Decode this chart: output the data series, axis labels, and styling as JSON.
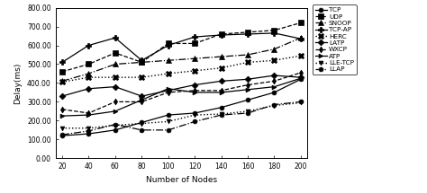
{
  "x": [
    20,
    40,
    60,
    80,
    100,
    120,
    140,
    160,
    180,
    200
  ],
  "series": {
    "TCP": [
      120,
      130,
      150,
      190,
      230,
      240,
      270,
      310,
      350,
      420
    ],
    "UDP": [
      460,
      500,
      560,
      510,
      610,
      610,
      660,
      670,
      680,
      720
    ],
    "SNOOP": [
      410,
      450,
      500,
      510,
      520,
      530,
      540,
      550,
      580,
      640
    ],
    "TCP-AP": [
      510,
      600,
      640,
      520,
      600,
      645,
      655,
      660,
      665,
      635
    ],
    "HERC": [
      405,
      430,
      430,
      430,
      450,
      465,
      480,
      510,
      520,
      545
    ],
    "LATP": [
      330,
      370,
      380,
      330,
      360,
      390,
      410,
      420,
      440,
      430
    ],
    "WXCP": [
      260,
      240,
      300,
      300,
      350,
      360,
      360,
      390,
      410,
      455
    ],
    "ATP": [
      225,
      230,
      250,
      310,
      370,
      350,
      350,
      365,
      380,
      425
    ],
    "LLE-TCP": [
      160,
      160,
      175,
      185,
      195,
      230,
      235,
      250,
      280,
      295
    ],
    "LLAP": [
      125,
      145,
      180,
      150,
      150,
      195,
      230,
      240,
      285,
      300
    ]
  },
  "styles": {
    "TCP": {
      "color": "black",
      "linestyle": "-",
      "marker": "o",
      "markersize": 3.5,
      "linewidth": 0.9,
      "mfc": "black"
    },
    "UDP": {
      "color": "black",
      "linestyle": "--",
      "marker": "s",
      "markersize": 4.0,
      "linewidth": 0.9,
      "mfc": "black"
    },
    "SNOOP": {
      "color": "black",
      "linestyle": "-.",
      "marker": "^",
      "markersize": 4.0,
      "linewidth": 0.9,
      "mfc": "black"
    },
    "TCP-AP": {
      "color": "black",
      "linestyle": "-",
      "marker": "P",
      "markersize": 4.5,
      "linewidth": 0.9,
      "mfc": "black"
    },
    "HERC": {
      "color": "black",
      "linestyle": ":",
      "marker": "X",
      "markersize": 4.5,
      "linewidth": 1.0,
      "mfc": "black"
    },
    "LATP": {
      "color": "black",
      "linestyle": "-",
      "marker": "D",
      "markersize": 3.5,
      "linewidth": 0.9,
      "mfc": "black"
    },
    "WXCP": {
      "color": "black",
      "linestyle": "--",
      "marker": "d",
      "markersize": 3.5,
      "linewidth": 0.9,
      "mfc": "black"
    },
    "ATP": {
      "color": "black",
      "linestyle": "-",
      "marker": ">",
      "markersize": 3.5,
      "linewidth": 0.9,
      "mfc": "black"
    },
    "LLE-TCP": {
      "color": "black",
      "linestyle": ":",
      "marker": "v",
      "markersize": 3.5,
      "linewidth": 1.0,
      "mfc": "black"
    },
    "LLAP": {
      "color": "black",
      "linestyle": "-.",
      "marker": "o",
      "markersize": 3.5,
      "linewidth": 0.9,
      "mfc": "black"
    }
  },
  "xlabel": "Number of Nodes",
  "ylabel": "Delay(ms)",
  "ylim": [
    0,
    800
  ],
  "yticks": [
    0,
    100,
    200,
    300,
    400,
    500,
    600,
    700,
    800
  ],
  "xlim": [
    15,
    205
  ],
  "xticks": [
    20,
    40,
    60,
    80,
    100,
    120,
    140,
    160,
    180,
    200
  ],
  "legend_labels": [
    "TCP",
    "UDP",
    "SNOOP",
    "TCP-AP",
    "HERC",
    "LATP",
    "WXCP",
    "ATP",
    "LLE-TCP",
    "LLAP"
  ]
}
